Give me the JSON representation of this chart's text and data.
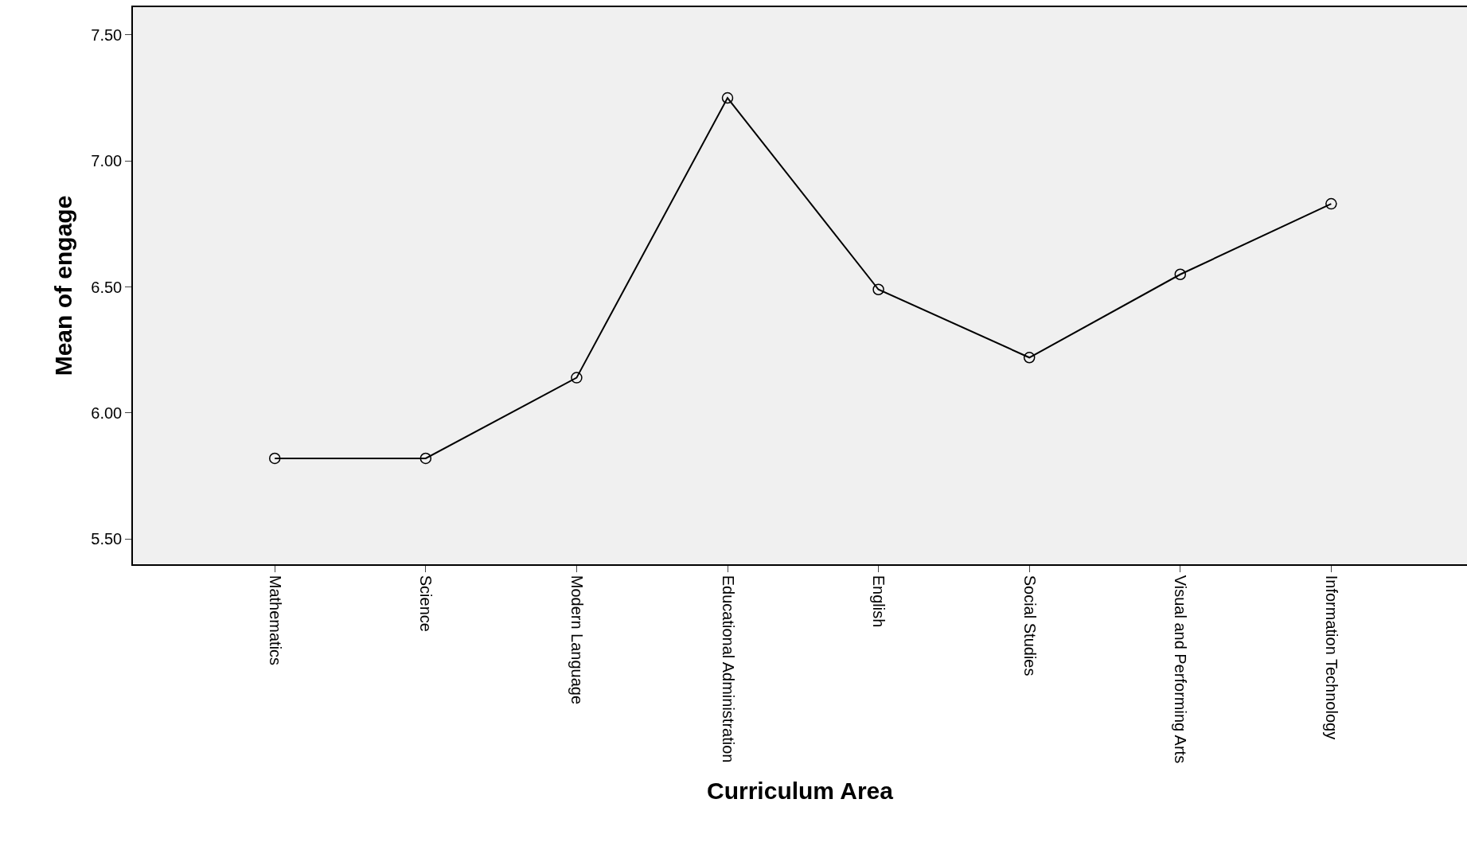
{
  "chart_data": {
    "type": "line",
    "xlabel": "Curriculum Area",
    "ylabel": "Mean of engage",
    "categories": [
      "Mathematics",
      "Science",
      "Modern Language",
      "Educational Administration",
      "English",
      "Social Studies",
      "Visual and Performing Arts",
      "Information Technology"
    ],
    "values": [
      5.82,
      5.82,
      6.14,
      7.25,
      6.49,
      6.22,
      6.55,
      6.83
    ],
    "color": "#000000",
    "marker": "circle",
    "line_style": "solid",
    "grid": false,
    "legend": false,
    "ylim": [
      5.4,
      7.61
    ],
    "yticks": [
      {
        "value": 5.5,
        "label": "5.50"
      },
      {
        "value": 6.0,
        "label": "6.00"
      },
      {
        "value": 6.5,
        "label": "6.50"
      },
      {
        "value": 7.0,
        "label": "7.00"
      },
      {
        "value": 7.5,
        "label": "7.50"
      }
    ]
  }
}
